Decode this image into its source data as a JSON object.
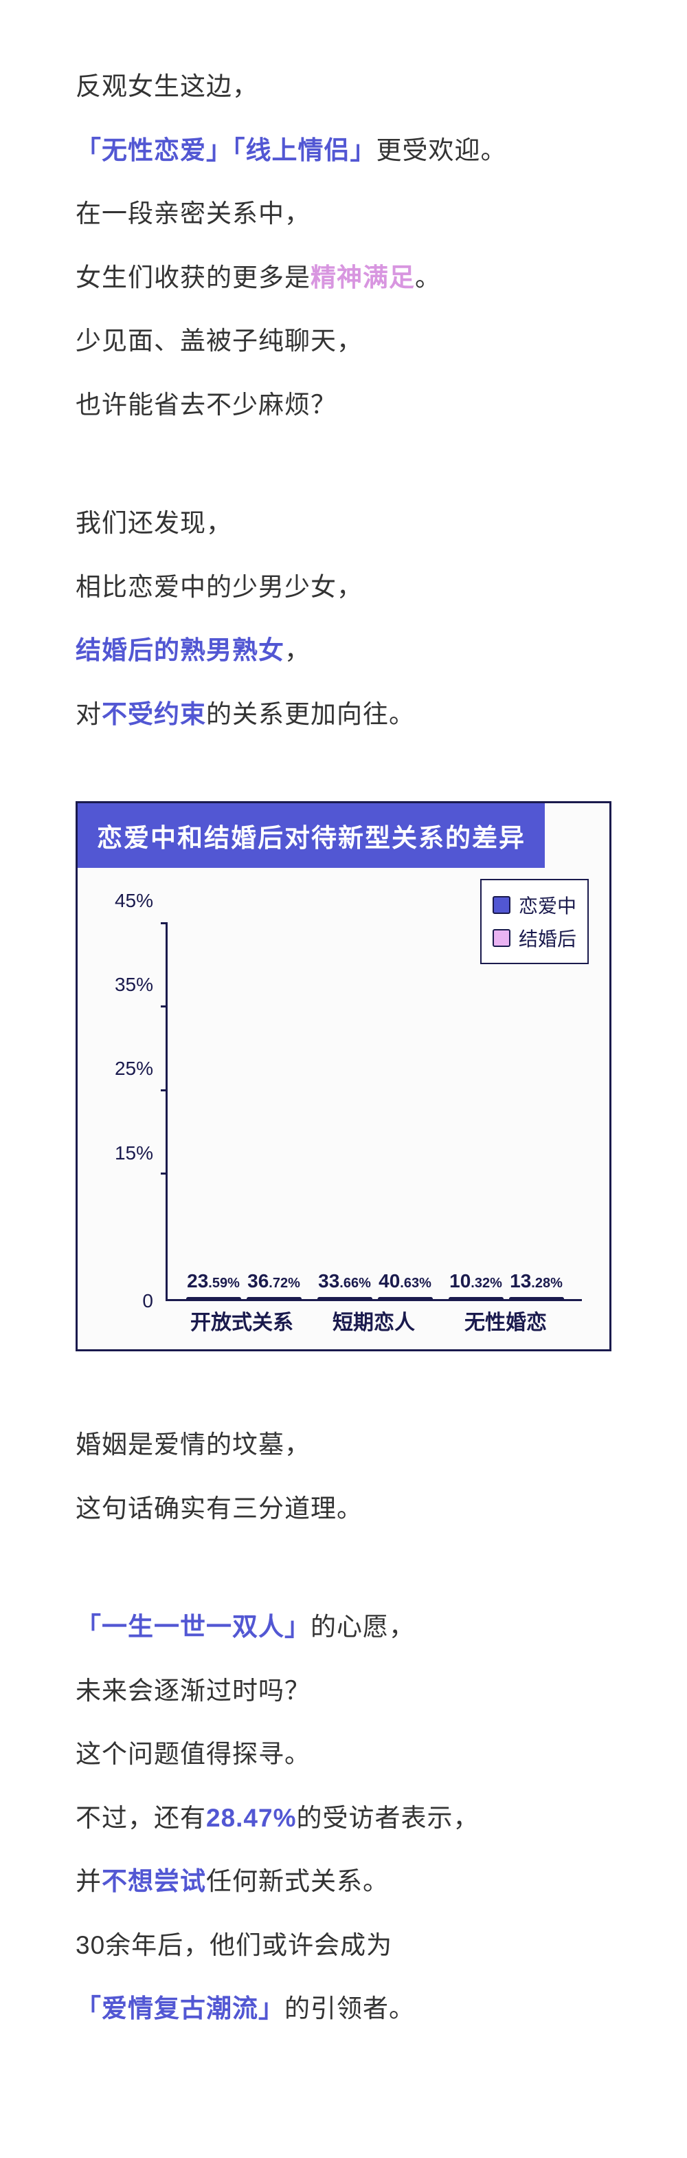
{
  "block1": {
    "l1": "反观女生这边，",
    "l2_h1": "「无性恋爱」「线上情侣」",
    "l2_tail": "更受欢迎。",
    "l3": "在一段亲密关系中，",
    "l4_head": "女生们收获的更多是",
    "l4_h": "精神满足",
    "l4_tail": "。",
    "l5": "少见面、盖被子纯聊天，",
    "l6": "也许能省去不少麻烦？"
  },
  "block2": {
    "l1": "我们还发现，",
    "l2": "相比恋爱中的少男少女，",
    "l3_h": "结婚后的熟男熟女",
    "l3_tail": "，",
    "l4_head": "对",
    "l4_h": "不受约束",
    "l4_tail": "的关系更加向往。"
  },
  "chart": {
    "title": "恋爱中和结婚后对待新型关系的差异",
    "legend": [
      {
        "label": "恋爱中",
        "color": "#5257d3"
      },
      {
        "label": "结婚后",
        "color": "#eab3f2"
      }
    ],
    "y_ticks": [
      {
        "label": "45%",
        "value": 45
      },
      {
        "label": "35%",
        "value": 35
      },
      {
        "label": "25%",
        "value": 25
      },
      {
        "label": "15%",
        "value": 15
      },
      {
        "label": "0",
        "value": 0
      }
    ],
    "y_max": 45,
    "categories": [
      {
        "name": "开放式关系",
        "bars": [
          {
            "int": "23",
            "dec": ".59%",
            "value": 23.59,
            "color": "#5257d3"
          },
          {
            "int": "36",
            "dec": ".72%",
            "value": 36.72,
            "color": "#eab3f2"
          }
        ]
      },
      {
        "name": "短期恋人",
        "bars": [
          {
            "int": "33",
            "dec": ".66%",
            "value": 33.66,
            "color": "#5257d3"
          },
          {
            "int": "40",
            "dec": ".63%",
            "value": 40.63,
            "color": "#eab3f2"
          }
        ]
      },
      {
        "name": "无性婚恋",
        "bars": [
          {
            "int": "10",
            "dec": ".32%",
            "value": 10.32,
            "color": "#5257d3"
          },
          {
            "int": "13",
            "dec": ".28%",
            "value": 13.28,
            "color": "#eab3f2"
          }
        ]
      }
    ]
  },
  "block3": {
    "l1": "婚姻是爱情的坟墓，",
    "l2": "这句话确实有三分道理。"
  },
  "block4": {
    "l1_h": "「一生一世一双人」",
    "l1_tail": "的心愿，",
    "l2": "未来会逐渐过时吗？",
    "l3": "这个问题值得探寻。",
    "l4_head": "不过，还有",
    "l4_h": "28.47%",
    "l4_tail": "的受访者表示，",
    "l5_head": "并",
    "l5_h": "不想尝试",
    "l5_tail": "任何新式关系。",
    "l6": "30余年后，他们或许会成为",
    "l7_h": "「爱情复古潮流」",
    "l7_tail": "的引领者。"
  }
}
